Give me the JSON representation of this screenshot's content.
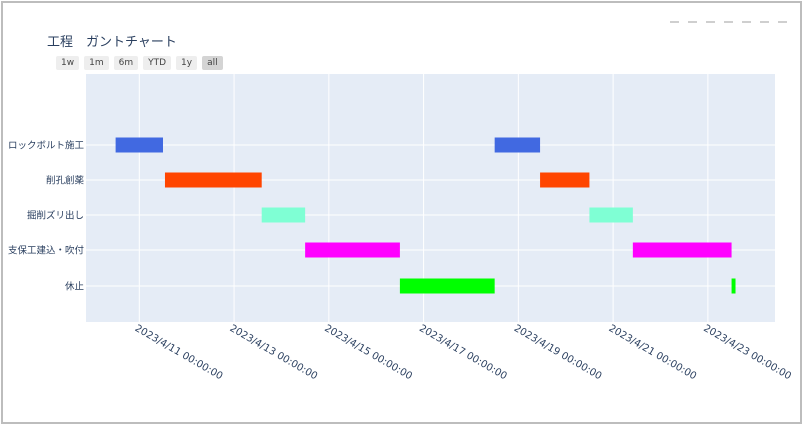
{
  "chart_data": {
    "type": "gantt",
    "title": "工程　ガントチャート",
    "range_selector": [
      "1w",
      "1m",
      "6m",
      "YTD",
      "1y",
      "all"
    ],
    "active_range": "all",
    "categories": [
      "ロックボルト施工",
      "削孔創薬",
      "掘削ズリ出し",
      "支保工建込・吹付",
      "休止"
    ],
    "x_ticks": [
      "2023/4/11 00:00:00",
      "2023/4/13 00:00:00",
      "2023/4/15 00:00:00",
      "2023/4/17 00:00:00",
      "2023/4/19 00:00:00",
      "2023/4/21 00:00:00",
      "2023/4/23 00:00:00"
    ],
    "x_range": [
      "2023-04-09T21:00",
      "2023-04-24T10:00"
    ],
    "bars": [
      {
        "task": "ロックボルト施工",
        "start": "2023-04-10T12:00",
        "end": "2023-04-11T12:00"
      },
      {
        "task": "削孔創薬",
        "start": "2023-04-11T13:00",
        "end": "2023-04-13T14:00"
      },
      {
        "task": "掘削ズリ出し",
        "start": "2023-04-13T14:00",
        "end": "2023-04-14T12:00"
      },
      {
        "task": "支保工建込・吹付",
        "start": "2023-04-14T12:00",
        "end": "2023-04-16T12:00"
      },
      {
        "task": "休止",
        "start": "2023-04-16T12:00",
        "end": "2023-04-18T12:00"
      },
      {
        "task": "ロックボルト施工",
        "start": "2023-04-18T12:00",
        "end": "2023-04-19T11:00"
      },
      {
        "task": "削孔創薬",
        "start": "2023-04-19T11:00",
        "end": "2023-04-20T12:00"
      },
      {
        "task": "掘削ズリ出し",
        "start": "2023-04-20T12:00",
        "end": "2023-04-21T10:00"
      },
      {
        "task": "支保工建込・吹付",
        "start": "2023-04-21T10:00",
        "end": "2023-04-23T12:00"
      },
      {
        "task": "休止",
        "start": "2023-04-23T12:00",
        "end": "2023-04-23T14:00"
      }
    ],
    "colors": {
      "ロックボルト施工": "#4169e1",
      "削孔創薬": "#ff4500",
      "掘削ズリ出し": "#7fffd4",
      "支保工建込・吹付": "#ff00ff",
      "休止": "#00ff00"
    },
    "background": "#e5ecf6",
    "grid": true,
    "legend": "none"
  }
}
